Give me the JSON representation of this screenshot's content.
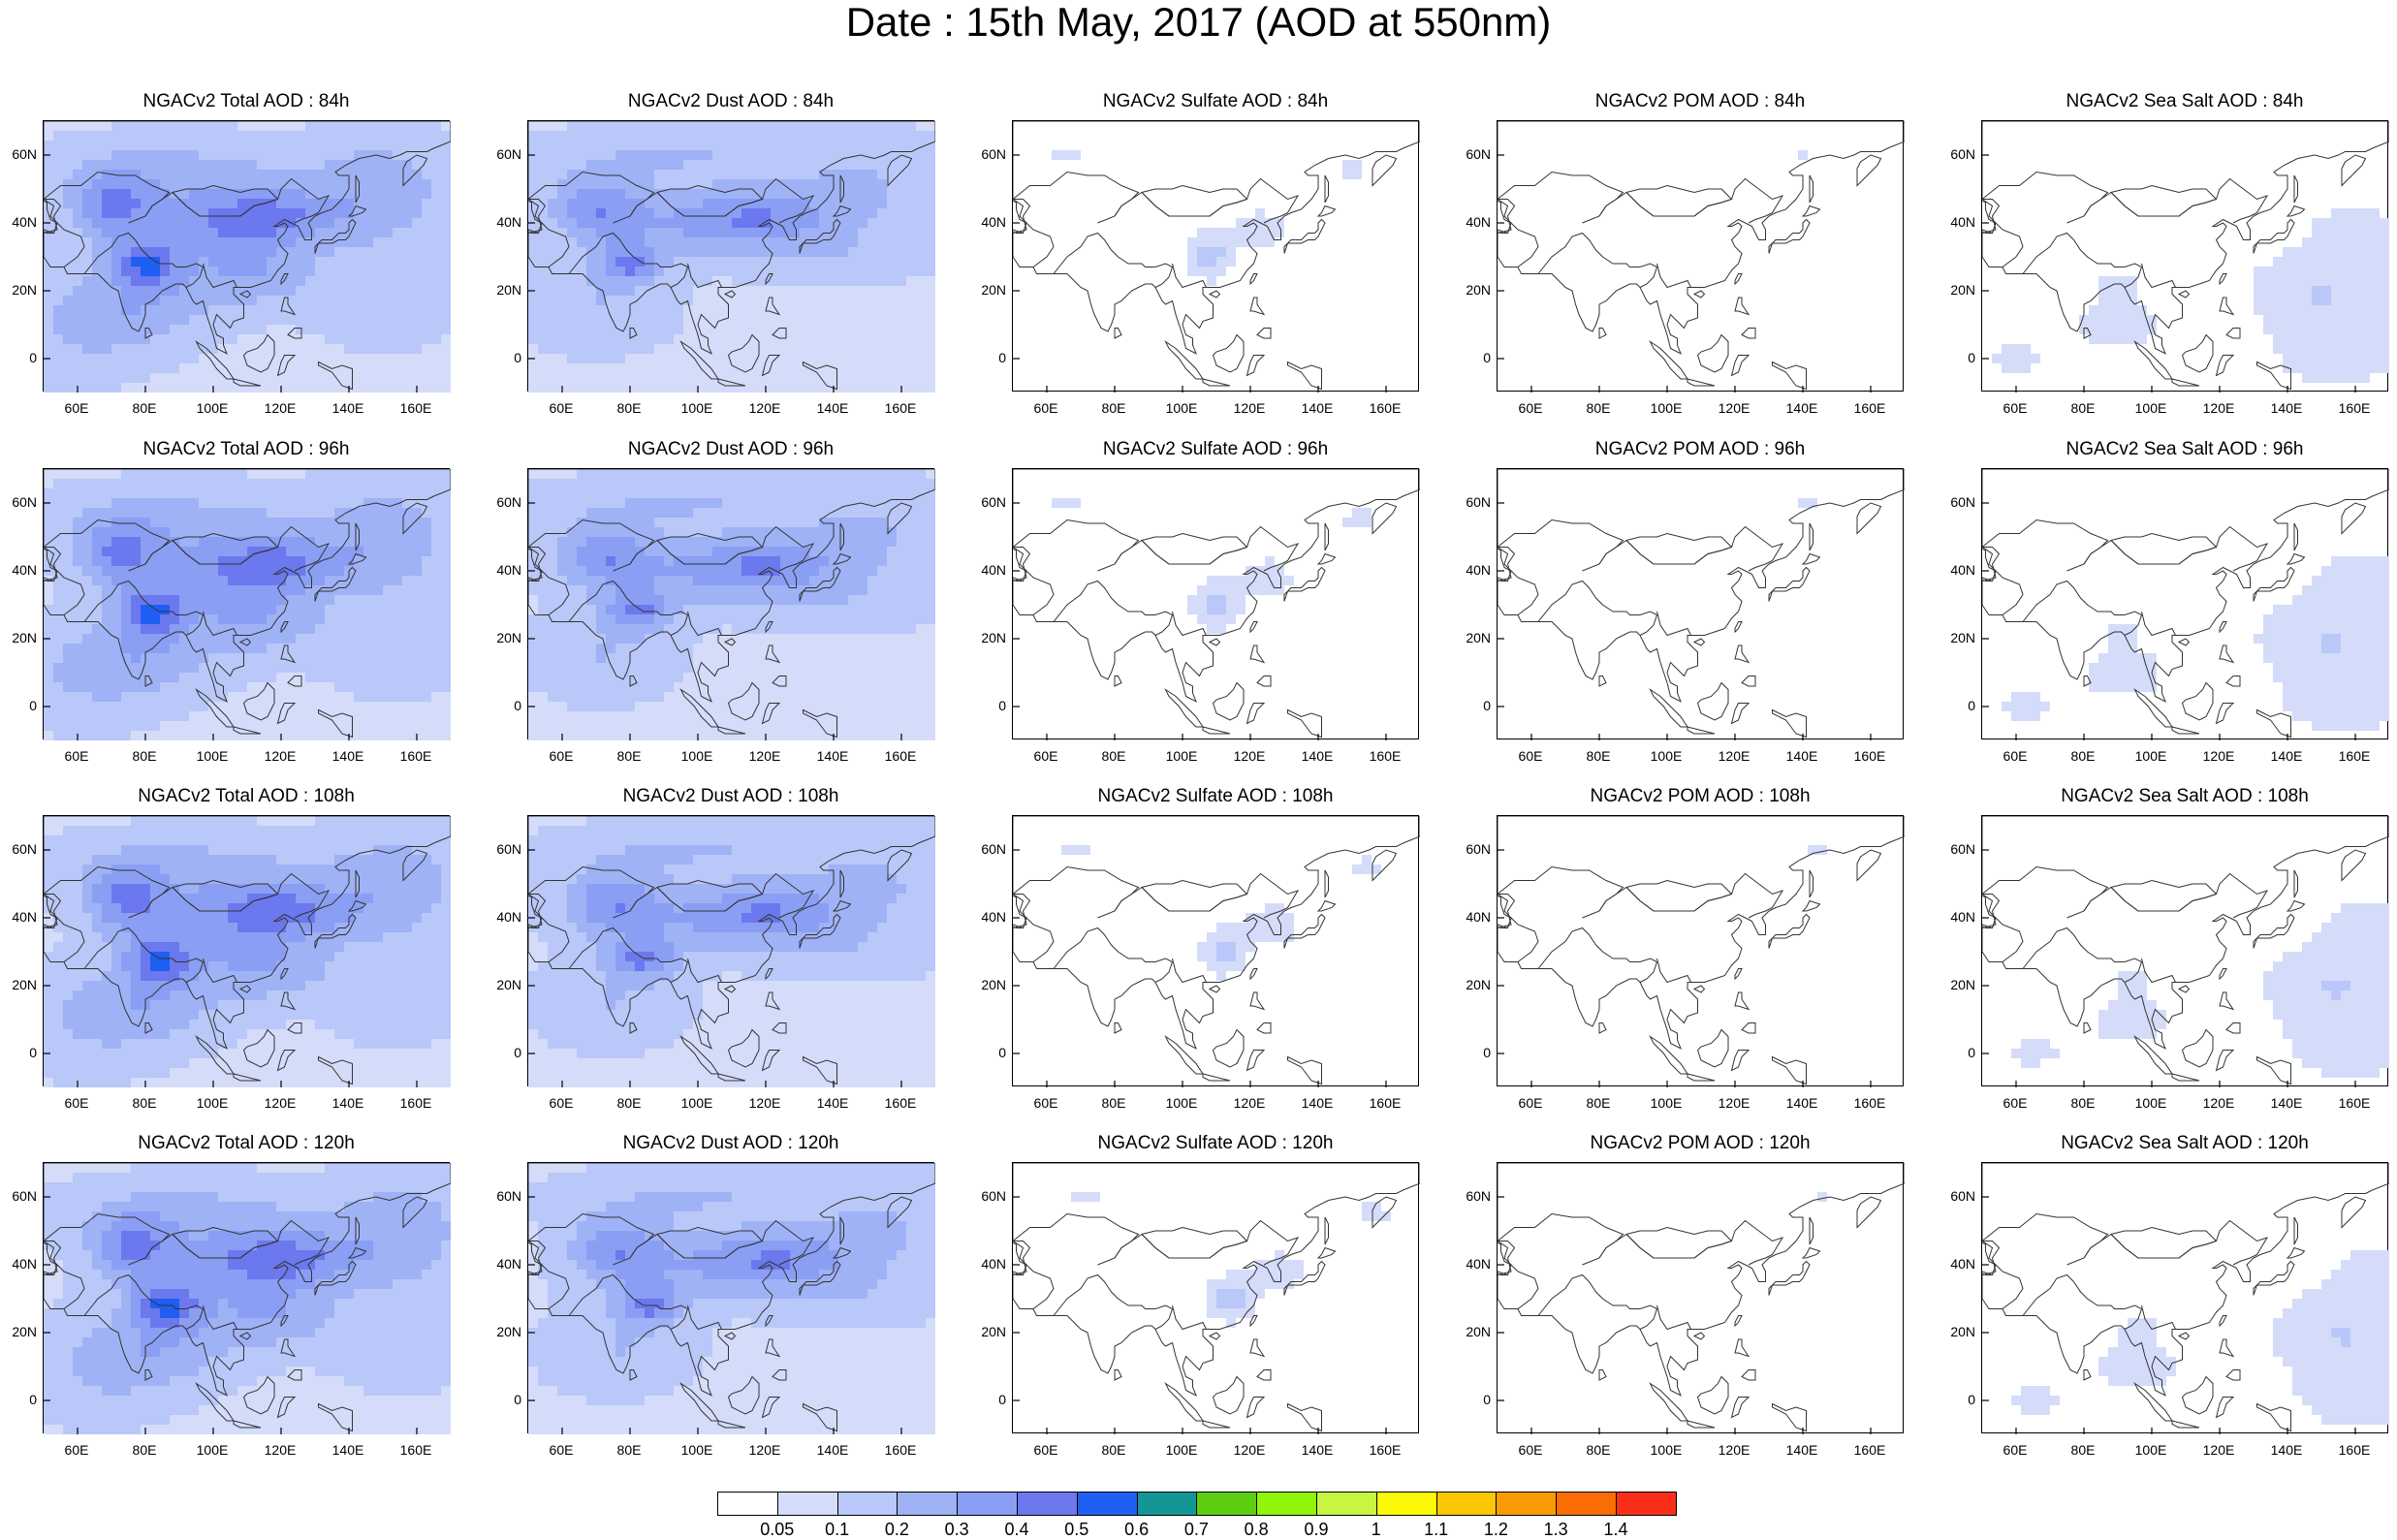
{
  "title": "Date : 15th May, 2017 (AOD at 550nm)",
  "species": [
    {
      "key": "total",
      "name": "Total"
    },
    {
      "key": "dust",
      "name": "Dust"
    },
    {
      "key": "sulfate",
      "name": "Sulfate"
    },
    {
      "key": "pom",
      "name": "POM"
    },
    {
      "key": "seasalt",
      "name": "Sea Salt"
    }
  ],
  "panels": [
    [
      "NGACv2 Total AOD : 84h",
      "NGACv2 Dust AOD : 84h",
      "NGACv2 Sulfate AOD : 84h",
      "NGACv2 POM AOD : 84h",
      "NGACv2 Sea Salt AOD : 84h"
    ],
    [
      "NGACv2 Total AOD : 96h",
      "NGACv2 Dust AOD : 96h",
      "NGACv2 Sulfate AOD : 96h",
      "NGACv2 POM AOD : 96h",
      "NGACv2 Sea Salt AOD : 96h"
    ],
    [
      "NGACv2 Total AOD : 108h",
      "NGACv2 Dust AOD : 108h",
      "NGACv2 Sulfate AOD : 108h",
      "NGACv2 POM AOD : 108h",
      "NGACv2 Sea Salt AOD : 108h"
    ],
    [
      "NGACv2 Total AOD : 120h",
      "NGACv2 Dust AOD : 120h",
      "NGACv2 Sulfate AOD : 120h",
      "NGACv2 POM AOD : 120h",
      "NGACv2 Sea Salt  AOD : 120h"
    ]
  ],
  "lat_ticks": [
    "60N",
    "40N",
    "20N",
    "0"
  ],
  "lat_values": [
    60,
    40,
    20,
    0
  ],
  "lon_ticks": [
    "60E",
    "80E",
    "100E",
    "120E",
    "140E",
    "160E"
  ],
  "lon_values": [
    60,
    80,
    100,
    120,
    140,
    160
  ],
  "map_extent": {
    "lon_min": 50,
    "lon_max": 170,
    "lat_min": -10,
    "lat_max": 70
  },
  "colorbar": {
    "labels": [
      "0.05",
      "0.1",
      "0.2",
      "0.3",
      "0.4",
      "0.5",
      "0.6",
      "0.7",
      "0.8",
      "0.9",
      "1",
      "1.1",
      "1.2",
      "1.3",
      "1.4"
    ],
    "colors": [
      "#ffffff",
      "#d4dcfa",
      "#b9c8f8",
      "#9fb2f6",
      "#8a9ef4",
      "#6b78ee",
      "#1f5ef2",
      "#129696",
      "#5ccd10",
      "#8ef50b",
      "#c8f541",
      "#fbfa04",
      "#fbc604",
      "#fb9b04",
      "#fb6c04",
      "#f92f1a"
    ]
  }
}
